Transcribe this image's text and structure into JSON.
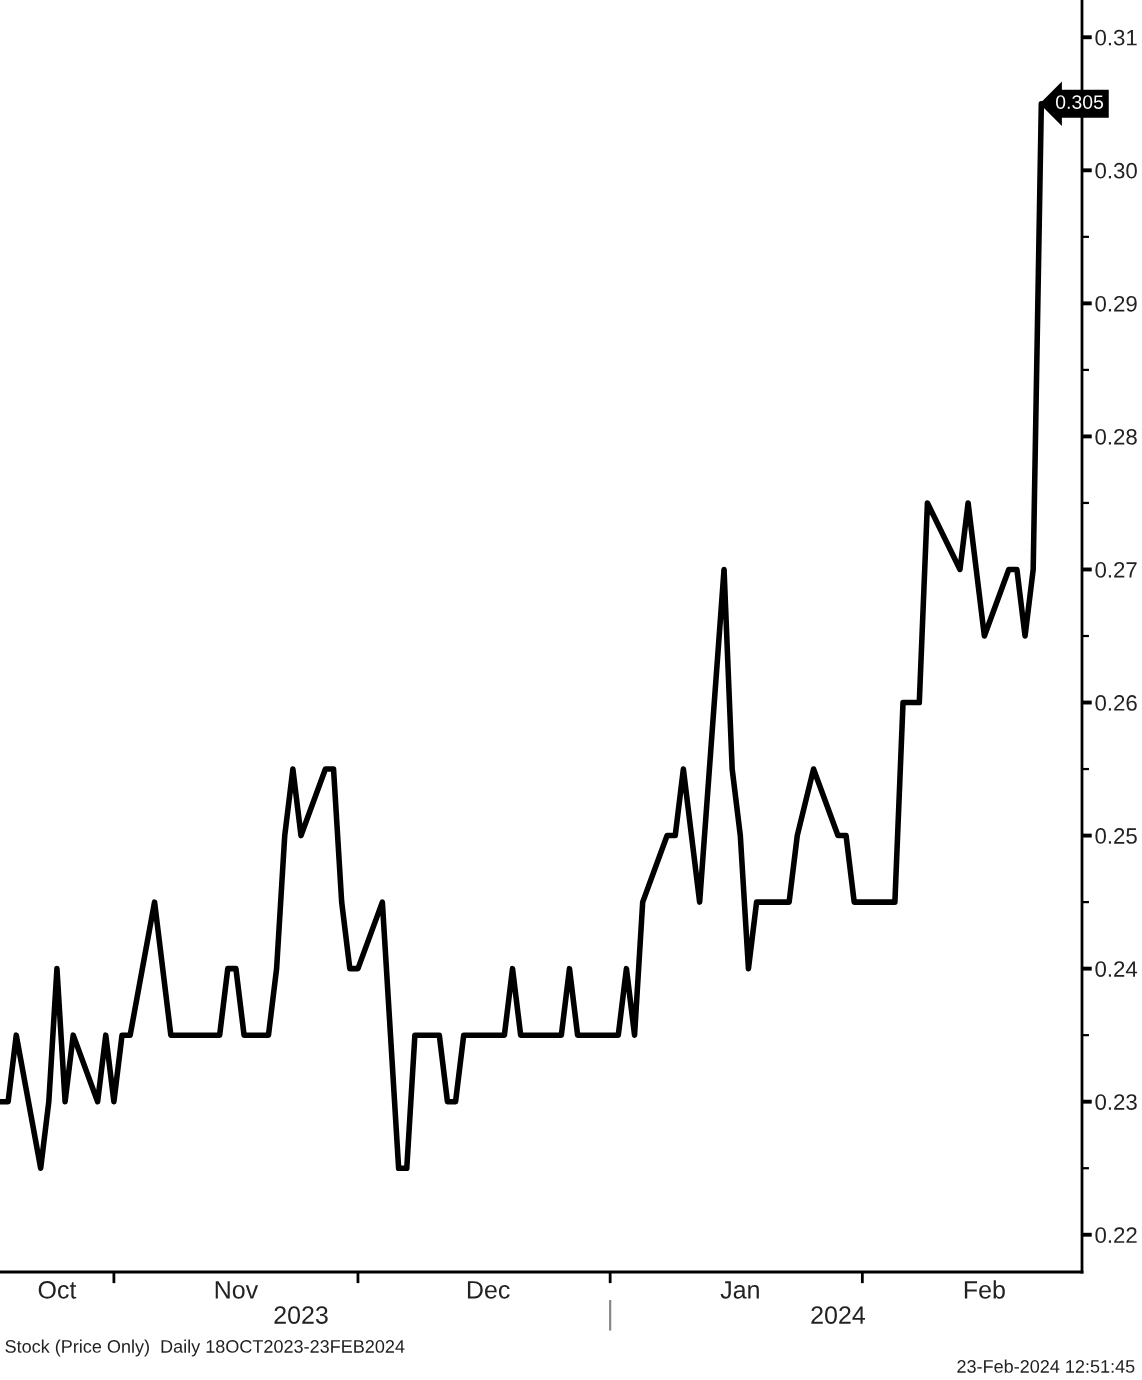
{
  "chart_data": {
    "type": "line",
    "x": [
      "2023-10-18",
      "2023-10-19",
      "2023-10-20",
      "2023-10-23",
      "2023-10-24",
      "2023-10-25",
      "2023-10-26",
      "2023-10-27",
      "2023-10-30",
      "2023-10-31",
      "2023-11-01",
      "2023-11-02",
      "2023-11-03",
      "2023-11-06",
      "2023-11-07",
      "2023-11-08",
      "2023-11-09",
      "2023-11-10",
      "2023-11-14",
      "2023-11-15",
      "2023-11-16",
      "2023-11-17",
      "2023-11-20",
      "2023-11-21",
      "2023-11-22",
      "2023-11-23",
      "2023-11-24",
      "2023-11-27",
      "2023-11-28",
      "2023-11-29",
      "2023-11-30",
      "2023-12-01",
      "2023-12-04",
      "2023-12-05",
      "2023-12-06",
      "2023-12-07",
      "2023-12-08",
      "2023-12-11",
      "2023-12-12",
      "2023-12-13",
      "2023-12-14",
      "2023-12-15",
      "2023-12-18",
      "2023-12-19",
      "2023-12-20",
      "2023-12-21",
      "2023-12-22",
      "2023-12-26",
      "2023-12-27",
      "2023-12-28",
      "2023-12-29",
      "2024-01-02",
      "2024-01-03",
      "2024-01-04",
      "2024-01-05",
      "2024-01-08",
      "2024-01-09",
      "2024-01-10",
      "2024-01-11",
      "2024-01-12",
      "2024-01-15",
      "2024-01-16",
      "2024-01-17",
      "2024-01-18",
      "2024-01-19",
      "2024-01-22",
      "2024-01-23",
      "2024-01-24",
      "2024-01-26",
      "2024-01-29",
      "2024-01-30",
      "2024-01-31",
      "2024-02-02",
      "2024-02-05",
      "2024-02-06",
      "2024-02-07",
      "2024-02-08",
      "2024-02-09",
      "2024-02-13",
      "2024-02-14",
      "2024-02-15",
      "2024-02-16",
      "2024-02-19",
      "2024-02-20",
      "2024-02-21",
      "2024-02-22",
      "2024-02-23"
    ],
    "series": [
      {
        "color": "#000000",
        "values": [
          0.23,
          0.23,
          0.235,
          0.225,
          0.23,
          0.24,
          0.23,
          0.235,
          0.23,
          0.235,
          0.23,
          0.235,
          0.235,
          0.245,
          0.24,
          0.235,
          0.235,
          0.235,
          0.235,
          0.24,
          0.24,
          0.235,
          0.235,
          0.24,
          0.25,
          0.255,
          0.25,
          0.255,
          0.255,
          0.245,
          0.24,
          0.24,
          0.245,
          0.235,
          0.225,
          0.225,
          0.235,
          0.235,
          0.23,
          0.23,
          0.235,
          0.235,
          0.235,
          0.235,
          0.24,
          0.235,
          0.235,
          0.235,
          0.24,
          0.235,
          0.235,
          0.235,
          0.24,
          0.235,
          0.245,
          0.25,
          0.25,
          0.255,
          0.25,
          0.245,
          0.27,
          0.255,
          0.25,
          0.24,
          0.245,
          0.245,
          0.245,
          0.25,
          0.255,
          0.25,
          0.25,
          0.245,
          0.245,
          0.245,
          0.26,
          0.26,
          0.26,
          0.275,
          0.27,
          0.275,
          0.27,
          0.265,
          0.27,
          0.27,
          0.265,
          0.27,
          0.305
        ],
        "value_labels": [
          null,
          null,
          null,
          null,
          null,
          null,
          null,
          null,
          null,
          null,
          null,
          null,
          null,
          null,
          null,
          null,
          null,
          null,
          null,
          null,
          null,
          null,
          null,
          null,
          null,
          null,
          null,
          null,
          null,
          null,
          null,
          null,
          null,
          null,
          null,
          null,
          null,
          null,
          null,
          null,
          null,
          null,
          null,
          null,
          null,
          null,
          null,
          null,
          null,
          null,
          null,
          null,
          null,
          null,
          null,
          null,
          null,
          null,
          null,
          null,
          null,
          null,
          null,
          null,
          null,
          null,
          null,
          null,
          null,
          null,
          null,
          null,
          null,
          null,
          null,
          null,
          null,
          null,
          null,
          null,
          null,
          null,
          null,
          null,
          null,
          null,
          "0.305"
        ]
      }
    ],
    "xlim": [
      "2023-10-18",
      "2024-02-28"
    ],
    "xticks": [
      {
        "value": "2023-11-01",
        "label": null
      },
      {
        "value": "2023-12-01",
        "label": null
      },
      {
        "value": "2024-01-01",
        "label": null
      },
      {
        "value": "2024-02-01",
        "label": null
      },
      {
        "value": "2023-10-25",
        "label": "Oct"
      },
      {
        "value": "2023-11-16",
        "label": "Nov"
      },
      {
        "value": "2023-12-17",
        "label": "Dec"
      },
      {
        "value": "2024-01-17",
        "label": "Jan"
      },
      {
        "value": "2024-02-16",
        "label": "Feb"
      }
    ],
    "x2lim": [
      "2023-10-18",
      "2024-02-28"
    ],
    "x2ticks": [
      {
        "value": "2024-01-01",
        "label": null
      },
      {
        "value": "2023-11-24",
        "label": "2023"
      },
      {
        "value": "2024-01-29",
        "label": "2024"
      }
    ],
    "ylim": [
      0.2172,
      0.3128
    ],
    "yticks": [
      0.22,
      {
        "value": 0.225,
        "label": null
      },
      0.23,
      {
        "value": 0.235,
        "label": null
      },
      0.24,
      {
        "value": 0.245,
        "label": null
      },
      0.25,
      {
        "value": 0.255,
        "label": null
      },
      0.26,
      {
        "value": 0.265,
        "label": null
      },
      0.27,
      {
        "value": 0.275,
        "label": null
      },
      0.28,
      {
        "value": 0.285,
        "label": null
      },
      0.29,
      {
        "value": 0.295,
        "label": null
      },
      {
        "value": 0.3,
        "label": "0.30"
      },
      {
        "value": 0.305,
        "label": null
      },
      0.31
    ],
    "annotations": [
      "Stock (Price Only)  Daily 18OCT2023-23FEB2024",
      "23-Feb-2024 12:51:45"
    ]
  }
}
